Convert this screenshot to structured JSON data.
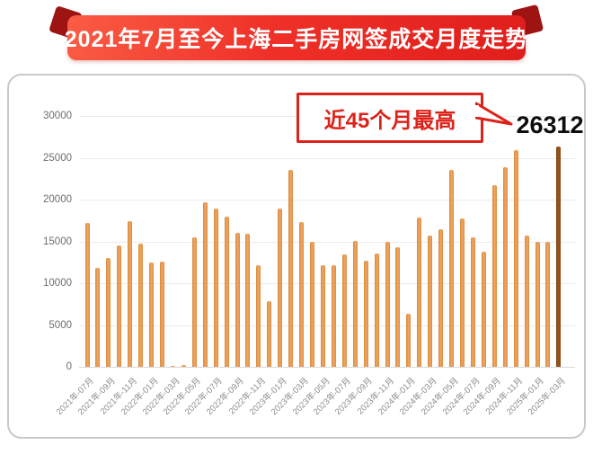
{
  "banner": {
    "title": "2021年7月至今上海二手房网签成交月度走势",
    "bg_color": "#e8251d",
    "fold_color": "#9e1412",
    "text_color": "#ffffff"
  },
  "annotation": {
    "label": "近45个月最高",
    "value_label": "26312",
    "border_color": "#dc231a",
    "text_color": "#dc231a",
    "value_color": "#0d0d0d"
  },
  "chart_data": {
    "type": "bar",
    "title": "2021年7月至今上海二手房网签成交月度走势",
    "months": [
      "2021-07",
      "2021-08",
      "2021-09",
      "2021-10",
      "2021-11",
      "2021-12",
      "2022-01",
      "2022-02",
      "2022-03",
      "2022-04",
      "2022-05",
      "2022-06",
      "2022-07",
      "2022-08",
      "2022-09",
      "2022-10",
      "2022-11",
      "2022-12",
      "2023-01",
      "2023-02",
      "2023-03",
      "2023-04",
      "2023-05",
      "2023-06",
      "2023-07",
      "2023-08",
      "2023-09",
      "2023-10",
      "2023-11",
      "2023-12",
      "2024-01",
      "2024-02",
      "2024-03",
      "2024-04",
      "2024-05",
      "2024-06",
      "2024-07",
      "2024-08",
      "2024-09",
      "2024-10",
      "2024-11",
      "2024-12",
      "2025-01",
      "2025-02",
      "2025-03"
    ],
    "values": [
      17200,
      11800,
      13000,
      14500,
      17400,
      14700,
      12500,
      12600,
      150,
      250,
      15500,
      19700,
      18900,
      18000,
      16000,
      15900,
      12200,
      7900,
      18900,
      23600,
      17300,
      15000,
      12200,
      12100,
      13400,
      15100,
      12700,
      13500,
      14900,
      14300,
      6300,
      17800,
      15700,
      16500,
      23500,
      17700,
      15500,
      13800,
      21700,
      23900,
      25900,
      15700,
      15000,
      14900,
      26312
    ],
    "x_tick_labels": [
      "2021年-07月",
      "2021年-09月",
      "2021年-11月",
      "2022年-01月",
      "2022年-03月",
      "2022年-05月",
      "2022年-07月",
      "2022年-09月",
      "2022年-11月",
      "2023年-01月",
      "2023年-03月",
      "2023年-05月",
      "2023年-07月",
      "2023年-09月",
      "2023年-11月",
      "2024年-01月",
      "2024年-03月",
      "2024年-05月",
      "2024年-07月",
      "2024年-09月",
      "2024年-11月",
      "2025年-01月",
      "2025年-03月"
    ],
    "y_ticks": [
      0,
      5000,
      10000,
      15000,
      20000,
      25000,
      30000
    ],
    "y_tick_labels": [
      "0",
      "5000",
      "10000",
      "15000",
      "20000",
      "25000",
      "30000"
    ],
    "ylim": [
      0,
      30000
    ],
    "grid": true,
    "legend": false,
    "bar_color": "#e6984f",
    "highlight_last_bar_color": "#8a4d16",
    "highlight_value": 26312
  }
}
